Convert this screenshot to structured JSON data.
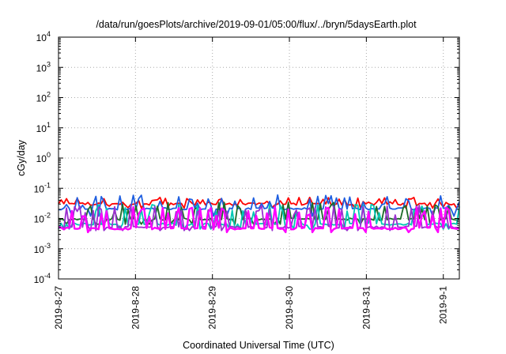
{
  "chart_data": {
    "type": "line",
    "title": "/data/run/goesPlots/archive/2019-09-01/05:00/flux/../bryn/5daysEarth.plot",
    "xlabel": "Coordinated Universal Time (UTC)",
    "ylabel": "cGy/day",
    "y_scale": "log",
    "ylim": [
      0.0001,
      10000
    ],
    "y_ticks": [
      {
        "value": 0.0001,
        "base": "10",
        "exp": "-4"
      },
      {
        "value": 0.001,
        "base": "10",
        "exp": "-3"
      },
      {
        "value": 0.01,
        "base": "10",
        "exp": "-2"
      },
      {
        "value": 0.1,
        "base": "10",
        "exp": "-1"
      },
      {
        "value": 1,
        "base": "10",
        "exp": "0"
      },
      {
        "value": 10,
        "base": "10",
        "exp": "1"
      },
      {
        "value": 100,
        "base": "10",
        "exp": "2"
      },
      {
        "value": 1000,
        "base": "10",
        "exp": "3"
      },
      {
        "value": 10000,
        "base": "10",
        "exp": "4"
      }
    ],
    "xlim": [
      "2019-08-27T00:00",
      "2019-09-01T05:00"
    ],
    "x_ticks": [
      {
        "value": "2019-08-27T00:00",
        "label": "2019-8-27"
      },
      {
        "value": "2019-08-28T00:00",
        "label": "2019-8-28"
      },
      {
        "value": "2019-08-29T00:00",
        "label": "2019-8-29"
      },
      {
        "value": "2019-08-30T00:00",
        "label": "2019-8-30"
      },
      {
        "value": "2019-08-31T00:00",
        "label": "2019-8-31"
      },
      {
        "value": "2019-09-01T00:00",
        "label": "2019-9-1"
      }
    ],
    "grid": true,
    "series": [
      {
        "color": "#ff0000",
        "base": 0.03,
        "low_frac": 0.85,
        "low": 0.022,
        "high": 0.05
      },
      {
        "color": "#1f5fe0",
        "base": 0.021,
        "low_frac": 0.55,
        "low": 0.012,
        "high": 0.06
      },
      {
        "color": "#1d6b2a",
        "base": 0.0095,
        "low_frac": 0.55,
        "low": 0.0065,
        "high": 0.035
      },
      {
        "color": "#00c8b4",
        "base": 0.0065,
        "low_frac": 0.55,
        "low": 0.0045,
        "high": 0.03
      },
      {
        "color": "#9b30d0",
        "base": 0.0052,
        "low_frac": 0.6,
        "low": 0.004,
        "high": 0.028
      },
      {
        "color": "#ff00ff",
        "base": 0.0047,
        "low_frac": 0.6,
        "low": 0.0035,
        "high": 0.025
      }
    ]
  }
}
